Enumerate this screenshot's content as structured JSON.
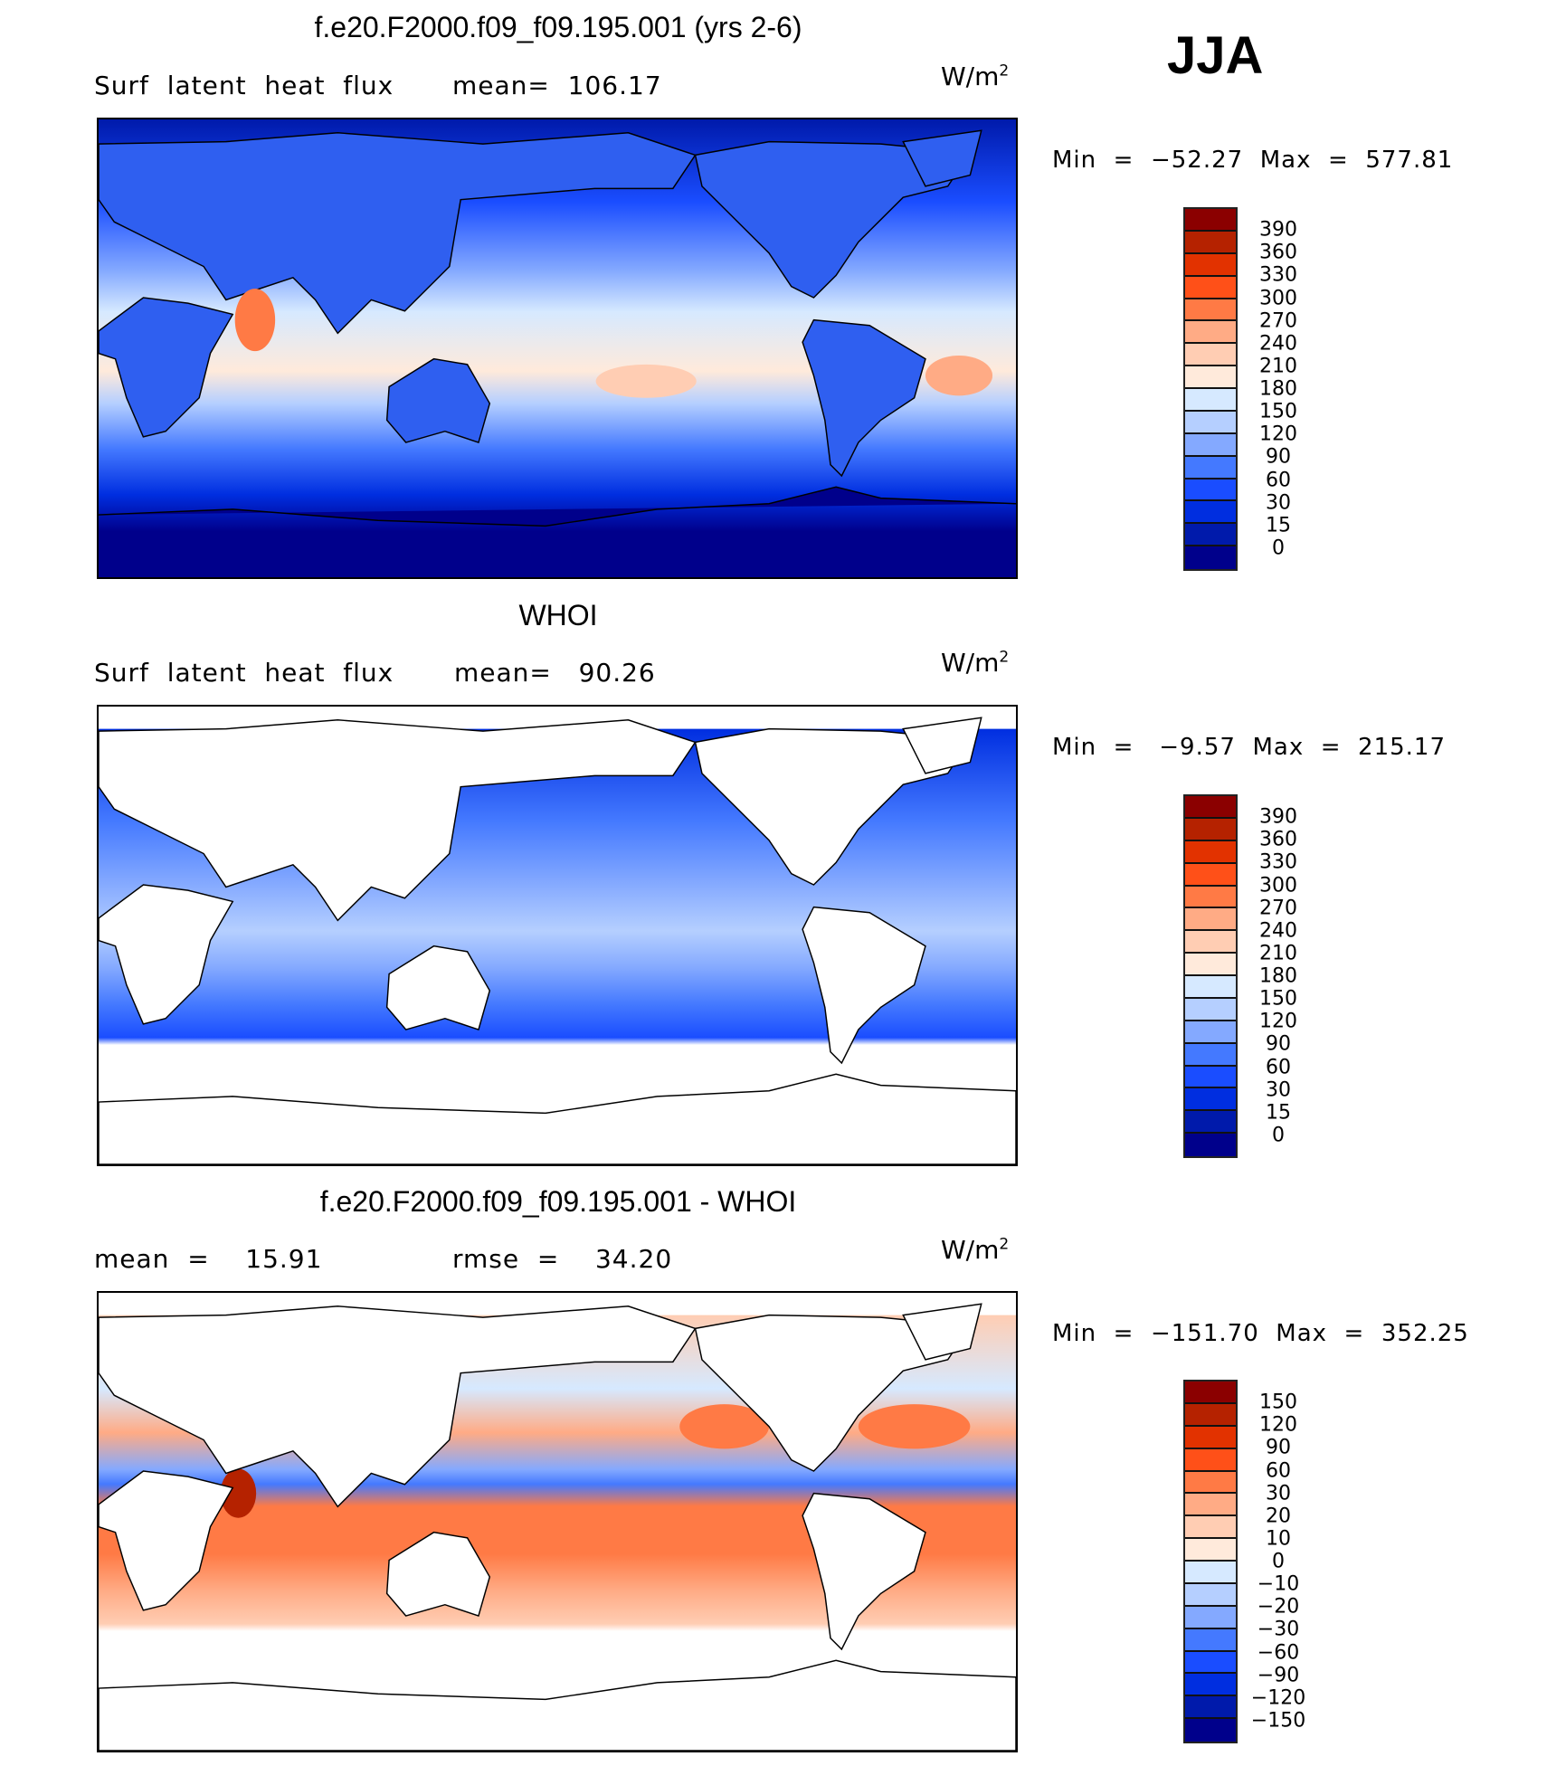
{
  "season": "JJA",
  "units": {
    "base": "W/m",
    "exp": "2"
  },
  "colors": {
    "levels16": [
      "#8b0000",
      "#b52200",
      "#e23200",
      "#ff5018",
      "#ff7a45",
      "#ffab85",
      "#ffcdb3",
      "#ffeadb",
      "#d6e9ff",
      "#b5cfff",
      "#84a9ff",
      "#4479ff",
      "#1a4dff",
      "#002ee0",
      "#001aab",
      "#00008b"
    ]
  },
  "panels": [
    {
      "title": "f.e20.F2000.f09_f09.195.001 (yrs 2-6)",
      "left_label": "Surf  latent  heat  flux",
      "mid_label": "mean=  106.17",
      "minmax": "Min  =  −52.27  Max  =  577.81",
      "colorbar_labels": [
        "390",
        "360",
        "330",
        "300",
        "270",
        "240",
        "210",
        "180",
        "150",
        "120",
        "90",
        "60",
        "30",
        "15",
        "0"
      ]
    },
    {
      "title": "WHOI",
      "left_label": "Surf  latent  heat  flux",
      "mid_label": "mean=   90.26",
      "minmax": "Min  =   −9.57  Max  =  215.17",
      "colorbar_labels": [
        "390",
        "360",
        "330",
        "300",
        "270",
        "240",
        "210",
        "180",
        "150",
        "120",
        "90",
        "60",
        "30",
        "15",
        "0"
      ]
    },
    {
      "title": "f.e20.F2000.f09_f09.195.001 - WHOI",
      "left_label": "mean  =    15.91",
      "mid_label": "rmse  =    34.20",
      "minmax": "Min  =  −151.70  Max  =  352.25",
      "colorbar_labels": [
        "150",
        "120",
        "90",
        "60",
        "30",
        "20",
        "10",
        "0",
        "−10",
        "−20",
        "−30",
        "−60",
        "−90",
        "−120",
        "−150"
      ]
    }
  ]
}
